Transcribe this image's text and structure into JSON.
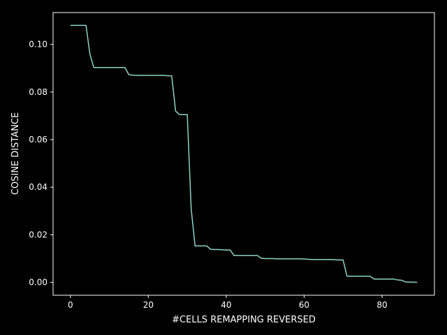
{
  "chart_data": {
    "type": "line",
    "title": "",
    "xlabel": "#CELLS REMAPPING REVERSED",
    "ylabel": "COSINE DISTANCE",
    "xlim": [
      -4.45,
      93.45
    ],
    "ylim": [
      -0.0054,
      0.1134
    ],
    "xticks": [
      0,
      20,
      40,
      60,
      80
    ],
    "yticks": [
      0.0,
      0.02,
      0.04,
      0.06,
      0.08,
      0.1
    ],
    "xtick_labels": [
      "0",
      "20",
      "40",
      "60",
      "80"
    ],
    "ytick_labels": [
      "0.00",
      "0.02",
      "0.04",
      "0.06",
      "0.08",
      "0.10"
    ],
    "grid": false,
    "colors": {
      "background": "#000000",
      "axes": "#ffffff",
      "line": "#8dd3c7"
    },
    "series": [
      {
        "x": [
          0,
          1,
          2,
          3,
          4,
          5,
          6,
          7,
          8,
          9,
          10,
          11,
          12,
          13,
          14,
          15,
          16,
          17,
          18,
          19,
          20,
          21,
          22,
          23,
          24,
          25,
          26,
          27,
          28,
          29,
          30,
          31,
          32,
          33,
          34,
          35,
          36,
          37,
          38,
          39,
          40,
          41,
          42,
          43,
          44,
          45,
          46,
          47,
          48,
          49,
          50,
          51,
          52,
          53,
          54,
          55,
          56,
          57,
          58,
          59,
          60,
          61,
          62,
          63,
          64,
          65,
          66,
          67,
          68,
          69,
          70,
          71,
          72,
          73,
          74,
          75,
          76,
          77,
          78,
          79,
          80,
          81,
          82,
          83,
          84,
          85,
          86,
          87,
          88,
          89
        ],
        "y": [
          0.108,
          0.108,
          0.108,
          0.108,
          0.108,
          0.096,
          0.0903,
          0.0903,
          0.0903,
          0.0903,
          0.0903,
          0.0903,
          0.0903,
          0.0903,
          0.0903,
          0.0873,
          0.0871,
          0.087,
          0.087,
          0.087,
          0.087,
          0.087,
          0.087,
          0.087,
          0.087,
          0.0868,
          0.0868,
          0.072,
          0.0705,
          0.0705,
          0.0705,
          0.031,
          0.0153,
          0.0153,
          0.0153,
          0.0153,
          0.0139,
          0.0138,
          0.0138,
          0.0137,
          0.0136,
          0.0136,
          0.0113,
          0.0113,
          0.0113,
          0.0113,
          0.0113,
          0.0113,
          0.0113,
          0.0101,
          0.01,
          0.01,
          0.01,
          0.0099,
          0.0099,
          0.0099,
          0.0099,
          0.0099,
          0.0099,
          0.0099,
          0.0098,
          0.0097,
          0.0096,
          0.0096,
          0.0096,
          0.0096,
          0.0096,
          0.0096,
          0.0095,
          0.0094,
          0.0094,
          0.0026,
          0.0026,
          0.0026,
          0.0026,
          0.0026,
          0.0026,
          0.0025,
          0.0014,
          0.0014,
          0.0014,
          0.0014,
          0.0014,
          0.0014,
          0.001,
          0.0009,
          0.0002,
          0.0001,
          0.0001,
          0.0
        ]
      }
    ]
  }
}
